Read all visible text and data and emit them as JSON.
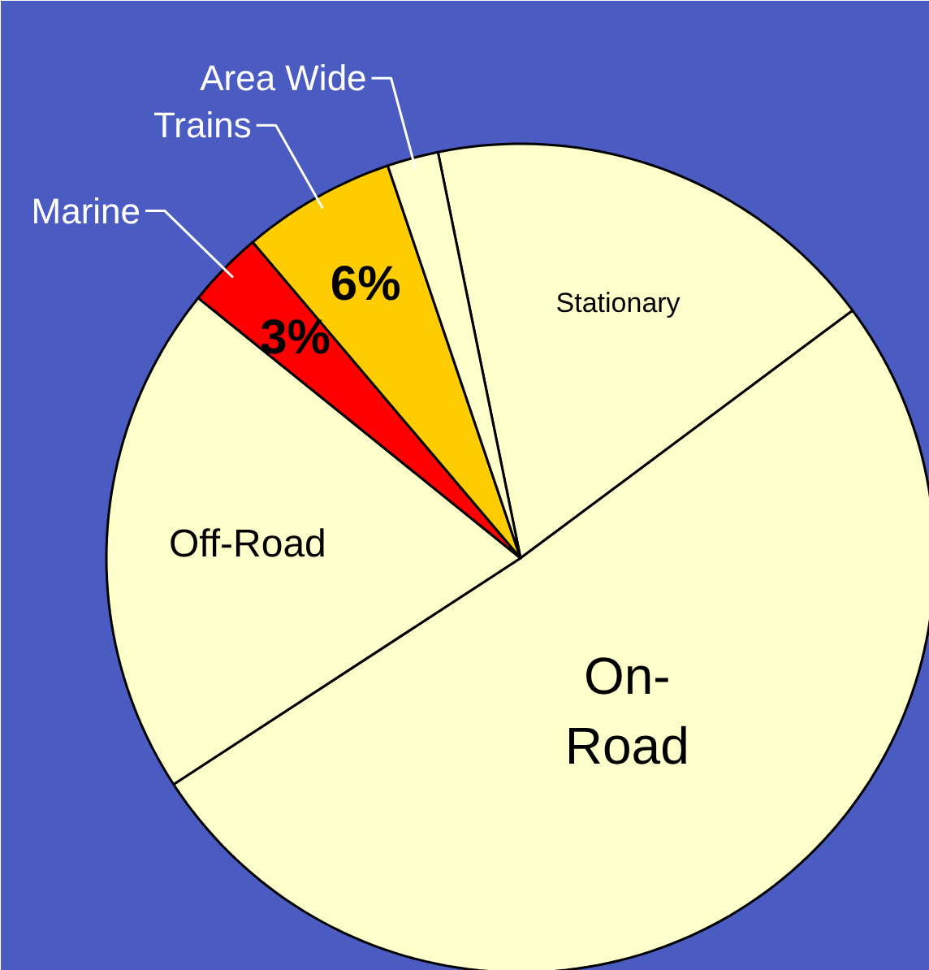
{
  "chart_data": {
    "type": "pie",
    "categories": [
      "Stationary",
      "On-Road",
      "Off-Road",
      "Marine",
      "Trains",
      "Area Wide"
    ],
    "values": [
      18,
      51,
      20,
      3,
      6,
      2
    ],
    "colors": [
      "#ffffcc",
      "#ffffcc",
      "#ffffcc",
      "#ff0000",
      "#ffcc00",
      "#ffffcc"
    ],
    "value_labels": [
      null,
      null,
      null,
      "3%",
      "6%",
      null
    ]
  }
}
